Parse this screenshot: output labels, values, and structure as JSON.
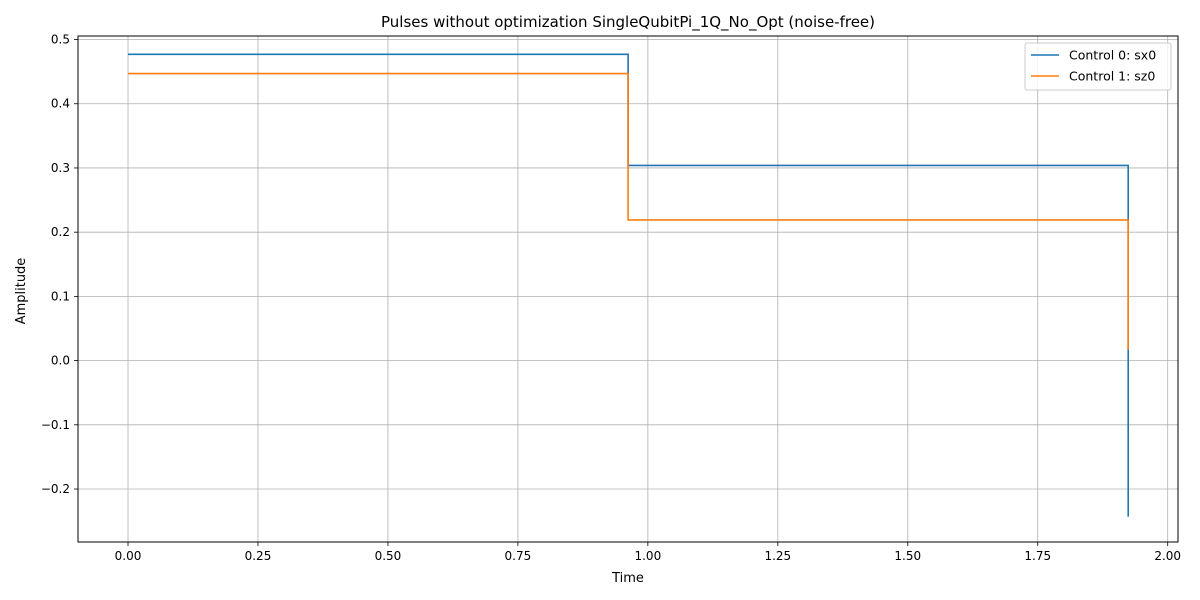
{
  "chart_data": {
    "type": "line",
    "title": "Pulses without optimization SingleQubitPi_1Q_No_Opt (noise-free)",
    "xlabel": "Time",
    "ylabel": "Amplitude",
    "xlim": [
      -0.0962,
      2.0198
    ],
    "ylim": [
      -0.2825,
      0.5055
    ],
    "xticks": [
      0.0,
      0.25,
      0.5,
      0.75,
      1.0,
      1.25,
      1.5,
      1.75,
      2.0
    ],
    "xtick_labels": [
      "0.00",
      "0.25",
      "0.50",
      "0.75",
      "1.00",
      "1.25",
      "1.50",
      "1.75",
      "2.00"
    ],
    "yticks": [
      -0.2,
      -0.1,
      0.0,
      0.1,
      0.2,
      0.3,
      0.4,
      0.5
    ],
    "ytick_labels": [
      "−0.2",
      "−0.1",
      "0.0",
      "0.1",
      "0.2",
      "0.3",
      "0.4",
      "0.5"
    ],
    "grid": true,
    "legend_position": "top-right",
    "series": [
      {
        "name": "Control 0: sx0",
        "color": "#1f77b4",
        "step": "post",
        "x": [
          0.0,
          0.962,
          1.924,
          1.924
        ],
        "y": [
          0.477,
          0.304,
          0.304,
          -0.243
        ]
      },
      {
        "name": "Control 1: sz0",
        "color": "#ff7f0e",
        "step": "post",
        "x": [
          0.0,
          0.962,
          1.924,
          1.924
        ],
        "y": [
          0.447,
          0.219,
          0.219,
          0.017
        ]
      }
    ]
  }
}
